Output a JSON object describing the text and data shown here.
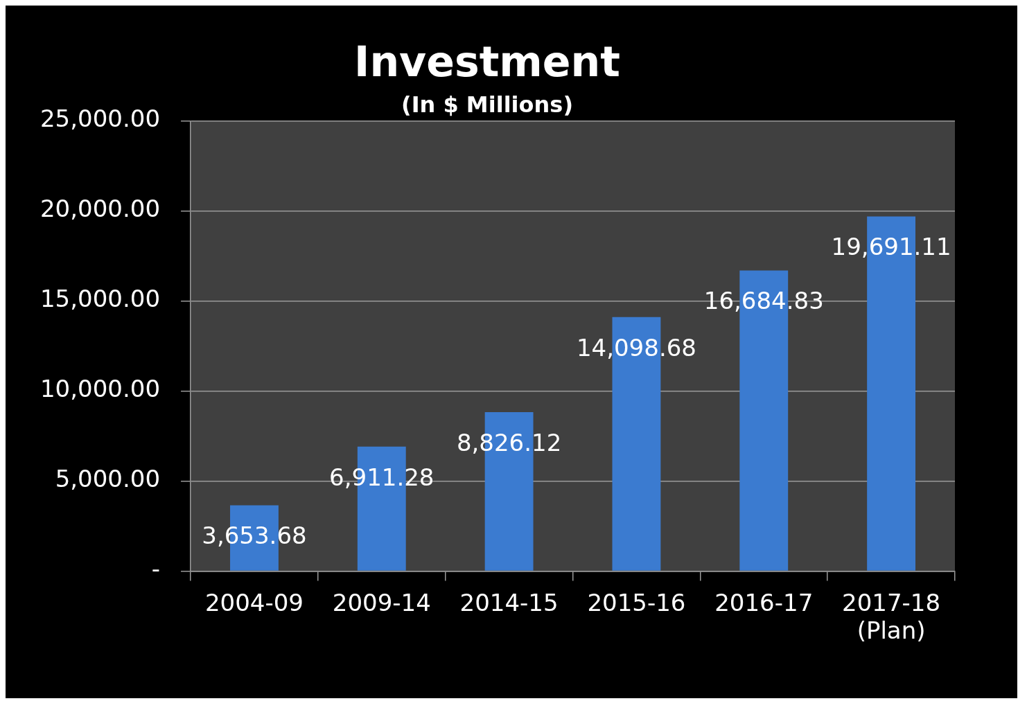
{
  "chart_data": {
    "type": "bar",
    "title": "Investment",
    "subtitle": "(In $ Millions)",
    "categories": [
      "2004-09",
      "2009-14",
      "2014-15",
      "2015-16",
      "2016-17",
      "2017-18 (Plan)"
    ],
    "values": [
      3653.68,
      6911.28,
      8826.12,
      14098.68,
      16684.83,
      19691.11
    ],
    "value_labels": [
      "3,653.68",
      "6,911.28",
      "8,826.12",
      "14,098.68",
      "16,684.83",
      "19,691.11"
    ],
    "color": "#3b7bd0",
    "ylim": [
      0,
      25000
    ],
    "yticks": [
      {
        "value": 0,
        "label": "-"
      },
      {
        "value": 5000,
        "label": "5,000.00"
      },
      {
        "value": 10000,
        "label": "10,000.00"
      },
      {
        "value": 15000,
        "label": "15,000.00"
      },
      {
        "value": 20000,
        "label": "20,000.00"
      },
      {
        "value": 25000,
        "label": "25,000.00"
      }
    ],
    "grid": "y",
    "legend": false
  }
}
